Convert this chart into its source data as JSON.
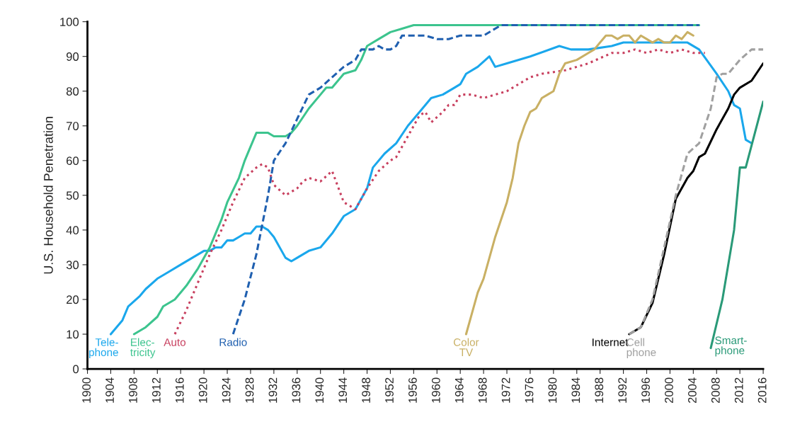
{
  "chart_data": {
    "type": "line",
    "ylabel": "U.S. Household Penetration",
    "xlim": [
      1900,
      2016
    ],
    "xticks": [
      1900,
      1904,
      1908,
      1912,
      1916,
      1920,
      1924,
      1928,
      1932,
      1936,
      1940,
      1944,
      1948,
      1952,
      1956,
      1960,
      1964,
      1968,
      1972,
      1976,
      1980,
      1984,
      1988,
      1992,
      1996,
      2000,
      2004,
      2008,
      2012,
      2016
    ],
    "ylim": [
      0,
      100
    ],
    "yticks": [
      0,
      10,
      20,
      30,
      40,
      50,
      60,
      70,
      80,
      90,
      100
    ],
    "grid": false,
    "legend": false,
    "marker": "none",
    "series": [
      {
        "name": "Tele-\nphone",
        "color": "#1aa7ec",
        "line_style": "solid",
        "x": [
          1904,
          1906,
          1907,
          1909,
          1910,
          1912,
          1914,
          1916,
          1918,
          1920,
          1921,
          1922,
          1923,
          1924,
          1925,
          1926,
          1927,
          1928,
          1929,
          1930,
          1931,
          1932,
          1934,
          1935,
          1936,
          1938,
          1940,
          1942,
          1944,
          1946,
          1948,
          1949,
          1951,
          1953,
          1955,
          1957,
          1959,
          1961,
          1963,
          1964,
          1965,
          1967,
          1969,
          1970,
          1972,
          1976,
          1981,
          1983,
          1986,
          1990,
          1992,
          2003,
          2005,
          2008,
          2010,
          2011,
          2012,
          2013,
          2014
        ],
        "values": [
          10,
          14,
          18,
          21,
          23,
          26,
          28,
          30,
          32,
          34,
          34,
          35,
          35,
          37,
          37,
          38,
          39,
          39,
          41,
          41,
          40,
          38,
          32,
          31,
          32,
          34,
          35,
          39,
          44,
          46,
          52,
          58,
          62,
          65,
          70,
          74,
          78,
          79,
          81,
          82,
          85,
          87,
          90,
          87,
          88,
          90,
          93,
          92,
          92,
          93,
          94,
          94,
          92,
          85,
          80,
          76,
          75,
          66,
          65
        ]
      },
      {
        "name": "Elec-\ntricity",
        "color": "#3cc48e",
        "line_style": "solid",
        "x": [
          1908,
          1910,
          1912,
          1913,
          1915,
          1917,
          1919,
          1921,
          1923,
          1924,
          1926,
          1927,
          1928,
          1929,
          1930,
          1931,
          1932,
          1934,
          1935,
          1936,
          1938,
          1940,
          1941,
          1942,
          1943,
          1944,
          1946,
          1947,
          1948,
          1950,
          1952,
          1954,
          1956,
          2005
        ],
        "values": [
          10,
          12,
          15,
          18,
          20,
          24,
          29,
          35,
          43,
          48,
          55,
          60,
          64,
          68,
          68,
          68,
          67,
          67,
          68,
          70,
          75,
          79,
          81,
          81,
          83,
          85,
          86,
          89,
          93,
          95,
          97,
          98,
          99,
          99
        ]
      },
      {
        "name": "Auto",
        "color": "#c8405f",
        "line_style": "dotted",
        "x": [
          1915,
          1917,
          1919,
          1921,
          1923,
          1925,
          1927,
          1929,
          1930,
          1931,
          1932,
          1934,
          1936,
          1937,
          1938,
          1940,
          1942,
          1944,
          1946,
          1948,
          1950,
          1952,
          1953,
          1955,
          1957,
          1958,
          1959,
          1961,
          1962,
          1963,
          1964,
          1966,
          1968,
          1972,
          1976,
          1978,
          1982,
          1986,
          1990,
          1992,
          1994,
          1996,
          1998,
          2000,
          2002,
          2004,
          2006
        ],
        "values": [
          10,
          17,
          25,
          33,
          40,
          48,
          55,
          58,
          59,
          58,
          53,
          50,
          52,
          54,
          55,
          54,
          57,
          48,
          46,
          52,
          57,
          60,
          61,
          67,
          73,
          74,
          71,
          74,
          76,
          76,
          79,
          79,
          78,
          80,
          84,
          85,
          86,
          88,
          91,
          91,
          92,
          91,
          92,
          91,
          92,
          91,
          91
        ]
      },
      {
        "name": "Radio",
        "color": "#2060b0",
        "line_style": "dashed",
        "x": [
          1925,
          1927,
          1929,
          1931,
          1932,
          1934,
          1936,
          1938,
          1940,
          1942,
          1944,
          1946,
          1947,
          1949,
          1950,
          1951,
          1952,
          1953,
          1954,
          1958,
          1960,
          1962,
          1964,
          1968,
          1971,
          2005
        ],
        "values": [
          10,
          20,
          33,
          50,
          60,
          65,
          72,
          79,
          81,
          84,
          87,
          89,
          92,
          92,
          93,
          92,
          92,
          93,
          96,
          96,
          95,
          95,
          96,
          96,
          99,
          99
        ]
      },
      {
        "name": "Color\nTV",
        "color": "#c9b064",
        "line_style": "solid",
        "x": [
          1965,
          1966,
          1967,
          1968,
          1970,
          1972,
          1973,
          1974,
          1975,
          1976,
          1977,
          1978,
          1979,
          1980,
          1981,
          1982,
          1984,
          1986,
          1987,
          1988,
          1989,
          1990,
          1991,
          1992,
          1993,
          1994,
          1995,
          1996,
          1997,
          1998,
          1999,
          2000,
          2001,
          2002,
          2003,
          2004
        ],
        "values": [
          10,
          16,
          22,
          26,
          38,
          48,
          55,
          65,
          70,
          74,
          75,
          78,
          79,
          80,
          85,
          88,
          89,
          91,
          92,
          94,
          96,
          96,
          95,
          96,
          96,
          94,
          96,
          95,
          94,
          95,
          94,
          94,
          96,
          95,
          97,
          96
        ]
      },
      {
        "name": "Internet",
        "color": "#000000",
        "line_style": "solid",
        "x": [
          1993,
          1995,
          1997,
          1999,
          2001,
          2003,
          2004,
          2005,
          2006,
          2008,
          2010,
          2011,
          2012,
          2014,
          2016
        ],
        "values": [
          10,
          12,
          19,
          33,
          49,
          55,
          57,
          61,
          62,
          69,
          75,
          79,
          81,
          83,
          88
        ]
      },
      {
        "name": "Cell\nphone",
        "color": "#a0a0a0",
        "line_style": "dashed",
        "x": [
          1993,
          1995,
          1997,
          1999,
          2001,
          2003,
          2005,
          2006,
          2007,
          2008,
          2009,
          2010,
          2012,
          2014,
          2016
        ],
        "values": [
          10,
          12,
          20,
          35,
          50,
          62,
          65,
          70,
          75,
          84,
          85,
          85,
          89,
          92,
          92
        ]
      },
      {
        "name": "Smart-\nphone",
        "color": "#2a9a78",
        "line_style": "solid",
        "x": [
          2007,
          2009,
          2011,
          2012,
          2013,
          2016
        ],
        "values": [
          6,
          20,
          40,
          58,
          58,
          77
        ]
      }
    ]
  }
}
